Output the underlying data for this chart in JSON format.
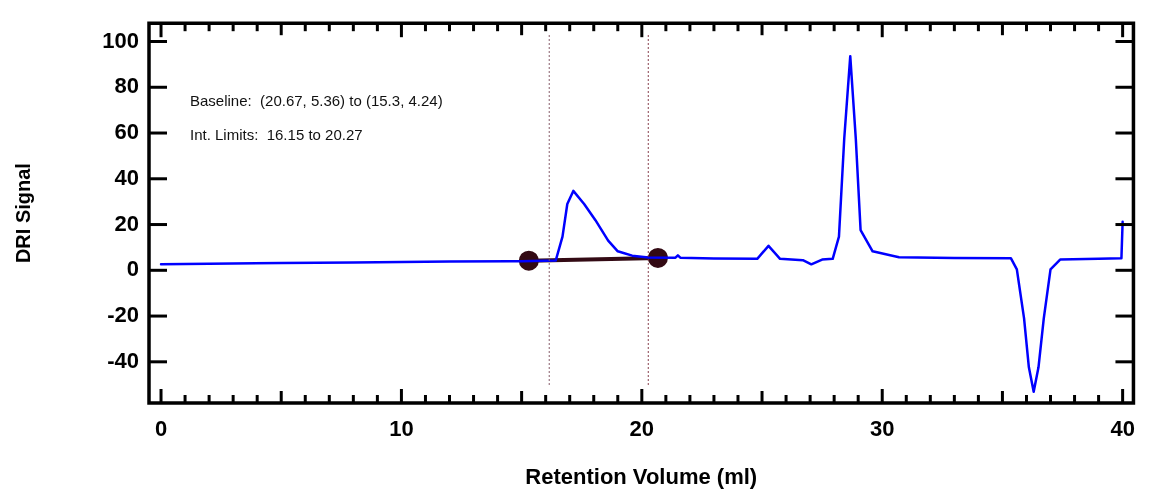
{
  "chart_data": {
    "type": "line",
    "xlabel": "Retention Volume (ml)",
    "ylabel": "DRI Signal",
    "annotations": [
      "Baseline:  (20.67, 5.36) to (15.3, 4.24)",
      "Int. Limits:  16.15 to 20.27"
    ],
    "xlim": [
      -0.5,
      40.45
    ],
    "ylim": [
      -58,
      108
    ],
    "xticks": [
      0,
      {
        "value": 1,
        "label": null
      },
      {
        "value": 2,
        "label": null
      },
      {
        "value": 3,
        "label": null
      },
      {
        "value": 4,
        "label": null
      },
      {
        "value": 5,
        "label": null
      },
      {
        "value": 6,
        "label": null
      },
      {
        "value": 7,
        "label": null
      },
      {
        "value": 8,
        "label": null
      },
      {
        "value": 9,
        "label": null
      },
      10,
      {
        "value": 11,
        "label": null
      },
      {
        "value": 12,
        "label": null
      },
      {
        "value": 13,
        "label": null
      },
      {
        "value": 14,
        "label": null
      },
      {
        "value": 15,
        "label": null
      },
      {
        "value": 16,
        "label": null
      },
      {
        "value": 17,
        "label": null
      },
      {
        "value": 18,
        "label": null
      },
      {
        "value": 19,
        "label": null
      },
      20,
      {
        "value": 21,
        "label": null
      },
      {
        "value": 22,
        "label": null
      },
      {
        "value": 23,
        "label": null
      },
      {
        "value": 24,
        "label": null
      },
      {
        "value": 25,
        "label": null
      },
      {
        "value": 26,
        "label": null
      },
      {
        "value": 27,
        "label": null
      },
      {
        "value": 28,
        "label": null
      },
      {
        "value": 29,
        "label": null
      },
      30,
      {
        "value": 31,
        "label": null
      },
      {
        "value": 32,
        "label": null
      },
      {
        "value": 33,
        "label": null
      },
      {
        "value": 34,
        "label": null
      },
      {
        "value": 35,
        "label": null
      },
      {
        "value": 36,
        "label": null
      },
      {
        "value": 37,
        "label": null
      },
      {
        "value": 38,
        "label": null
      },
      {
        "value": 39,
        "label": null
      },
      40
    ],
    "yticks": [
      -40,
      -20,
      0,
      20,
      40,
      60,
      80,
      100
    ],
    "grid": false,
    "legend": false,
    "series": [
      {
        "color": "#0000ff",
        "marker": "none",
        "x": [
          0,
          2,
          5,
          8,
          10,
          12,
          15,
          16.42,
          16.7,
          16.9,
          17.15,
          17.6,
          18.07,
          18.6,
          19.0,
          19.6,
          20.27,
          21.4,
          21.5,
          21.6,
          23,
          24.8,
          25.27,
          25.75,
          26.7,
          27.05,
          27.5,
          27.94,
          28.2,
          28.42,
          28.67,
          28.9,
          29.1,
          29.6,
          30.7,
          33,
          35.35,
          35.6,
          35.9,
          36.1,
          36.3,
          36.5,
          36.72,
          37.0,
          37.4,
          39,
          39.95,
          40.0
        ],
        "values": [
          2.6,
          2.9,
          3.2,
          3.4,
          3.6,
          3.8,
          4.0,
          4.3,
          14.7,
          29,
          34.7,
          29,
          21.9,
          13.0,
          8.3,
          6.4,
          5.6,
          5.5,
          6.5,
          5.5,
          5.2,
          5.0,
          10.7,
          5.0,
          4.4,
          2.6,
          4.7,
          5.0,
          14.7,
          57.6,
          93.6,
          57.6,
          17.6,
          8.3,
          5.7,
          5.4,
          5.3,
          0.4,
          -21,
          -42.4,
          -53.1,
          -42.4,
          -21,
          0.4,
          4.7,
          5.0,
          5.3,
          21.2
        ]
      },
      {
        "color": "#330a14",
        "marker": "circle",
        "x": [
          15.3,
          20.67
        ],
        "values": [
          4.2,
          5.4
        ]
      }
    ],
    "ref_lines": [
      {
        "axis": "x",
        "value": 16.15,
        "color": "#7a4a5a",
        "line_style": "dotted"
      },
      {
        "axis": "x",
        "value": 20.27,
        "color": "#7a2a3a",
        "line_style": "dotted"
      }
    ]
  }
}
